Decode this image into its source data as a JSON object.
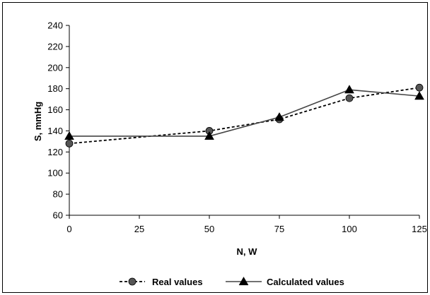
{
  "chart_data": {
    "type": "line",
    "xlabel": "N, W",
    "ylabel": "S, mmHg",
    "x": [
      0,
      25,
      50,
      75,
      100,
      125
    ],
    "xticks": [
      "0",
      "25",
      "50",
      "75",
      "100",
      "125"
    ],
    "yticks": [
      "60",
      "80",
      "100",
      "120",
      "140",
      "160",
      "180",
      "200",
      "220",
      "240"
    ],
    "xlim": [
      0,
      125
    ],
    "ylim": [
      60,
      240
    ],
    "grid": false,
    "legend_position": "bottom",
    "series": [
      {
        "name": "Real values",
        "x": [
          0,
          50,
          75,
          100,
          125
        ],
        "values": [
          128,
          140,
          151,
          171,
          181
        ],
        "line_style": "dashed",
        "marker": "circle",
        "color": "#000000",
        "marker_color": "#555555"
      },
      {
        "name": "Calculated values",
        "x": [
          0,
          50,
          75,
          100,
          125
        ],
        "values": [
          135,
          135,
          153,
          179,
          173
        ],
        "line_style": "solid",
        "marker": "triangle",
        "color": "#444444",
        "marker_color": "#000000"
      }
    ]
  }
}
